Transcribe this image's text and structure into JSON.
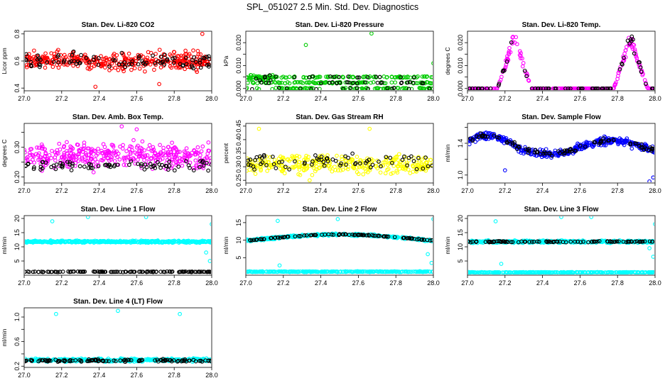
{
  "figure": {
    "title": "SPL_051027  2.5 Min. Std. Dev. Diagnostics"
  },
  "colors": {
    "black": "#000000",
    "red": "#ff0000",
    "green": "#00cc00",
    "magenta": "#ff00ff",
    "yellow": "#ffff00",
    "blue": "#0000ff",
    "cyan": "#00ffff"
  },
  "chart_data": [
    {
      "type": "scatter",
      "title": "Stan. Dev. Li-820 CO2",
      "ylabel": "Licor ppm",
      "xlim": [
        27.0,
        28.0
      ],
      "ylim": [
        0.38,
        0.82
      ],
      "xticks": [
        27.0,
        27.2,
        27.4,
        27.6,
        27.8,
        28.0
      ],
      "yticks": [
        0.4,
        0.6,
        0.8
      ],
      "ytick_labels": [
        "0.4",
        "0.6",
        "0.8"
      ],
      "series": [
        {
          "name": "main",
          "color": "red",
          "pattern": "band",
          "base": 0.6,
          "spread": 0.09,
          "n": 360,
          "outliers": [
            [
              27.38,
              0.41
            ],
            [
              27.72,
              0.43
            ],
            [
              27.95,
              0.8
            ]
          ]
        },
        {
          "name": "ref",
          "color": "black",
          "pattern": "band",
          "base": 0.6,
          "spread": 0.09,
          "n": 90,
          "outliers": []
        }
      ]
    },
    {
      "type": "scatter",
      "title": "Stan. Dev. Li-820 Pressure",
      "ylabel": "kPa",
      "xlim": [
        27.0,
        28.0
      ],
      "ylim": [
        -0.001,
        0.025
      ],
      "xticks": [
        27.0,
        27.2,
        27.4,
        27.6,
        27.8,
        28.0
      ],
      "yticks": [
        0.0,
        0.005,
        0.01,
        0.015,
        0.02
      ],
      "ytick_labels": [
        "0.000",
        "",
        "0.010",
        "",
        "0.020"
      ],
      "series": [
        {
          "name": "main",
          "color": "green",
          "pattern": "levels",
          "levels": [
            0.0,
            0.0025,
            0.005
          ],
          "n": 330,
          "outliers": [
            [
              27.32,
              0.019
            ],
            [
              27.67,
              0.024
            ],
            [
              28.0,
              0.011
            ]
          ]
        },
        {
          "name": "ref",
          "color": "black",
          "pattern": "levels",
          "levels": [
            0.0,
            0.0025,
            0.005
          ],
          "n": 60,
          "outliers": []
        }
      ]
    },
    {
      "type": "scatter",
      "title": "Stan. Dev. Li-820 Temp.",
      "ylabel": "degrees C",
      "xlim": [
        27.0,
        28.0
      ],
      "ylim": [
        -0.001,
        0.025
      ],
      "xticks": [
        27.0,
        27.2,
        27.4,
        27.6,
        27.8,
        28.0
      ],
      "yticks": [
        0.0,
        0.005,
        0.01,
        0.015,
        0.02
      ],
      "ytick_labels": [
        "0.000",
        "",
        "0.010",
        "",
        "0.020"
      ],
      "series": [
        {
          "name": "main",
          "color": "magenta",
          "pattern": "peaks",
          "peaks": [
            [
              27.25,
              0.024
            ],
            [
              27.87,
              0.024
            ]
          ],
          "width": 0.09,
          "n": 300,
          "outliers": []
        },
        {
          "name": "ref",
          "color": "black",
          "pattern": "peaks",
          "peaks": [
            [
              27.25,
              0.024
            ],
            [
              27.87,
              0.024
            ]
          ],
          "width": 0.09,
          "n": 70,
          "outliers": []
        }
      ]
    },
    {
      "type": "scatter",
      "title": "Stan. Dev. Amb. Box Temp.",
      "ylabel": "degrees C",
      "xlim": [
        27.0,
        28.0
      ],
      "ylim": [
        0.18,
        0.38
      ],
      "xticks": [
        27.0,
        27.2,
        27.4,
        27.6,
        27.8,
        28.0
      ],
      "yticks": [
        0.2,
        0.25,
        0.3,
        0.35
      ],
      "ytick_labels": [
        "0.20",
        "",
        "0.30",
        ""
      ],
      "series": [
        {
          "name": "main",
          "color": "magenta",
          "pattern": "band",
          "base": 0.27,
          "spread": 0.06,
          "n": 380,
          "outliers": [
            [
              27.52,
              0.37
            ],
            [
              27.6,
              0.36
            ]
          ]
        },
        {
          "name": "ref",
          "color": "black",
          "pattern": "band",
          "base": 0.24,
          "spread": 0.025,
          "n": 80,
          "outliers": []
        }
      ]
    },
    {
      "type": "scatter",
      "title": "Stan. Dev. Gas Stream RH",
      "ylabel": "percent",
      "xlim": [
        27.0,
        28.0
      ],
      "ylim": [
        0.24,
        0.46
      ],
      "xticks": [
        27.0,
        27.2,
        27.4,
        27.6,
        27.8,
        28.0
      ],
      "yticks": [
        0.25,
        0.3,
        0.35,
        0.4,
        0.45
      ],
      "ytick_labels": [
        "0.25",
        "0.30",
        "0.35",
        "0.40",
        "0.45"
      ],
      "series": [
        {
          "name": "main",
          "color": "yellow",
          "pattern": "band",
          "base": 0.31,
          "spread": 0.05,
          "n": 330,
          "outliers": [
            [
              27.07,
              0.44
            ],
            [
              27.66,
              0.44
            ],
            [
              27.34,
              0.25
            ]
          ]
        },
        {
          "name": "ref",
          "color": "black",
          "pattern": "band",
          "base": 0.32,
          "spread": 0.04,
          "n": 70,
          "outliers": []
        }
      ]
    },
    {
      "type": "scatter",
      "title": "Stan. Dev. Sample Flow",
      "ylabel": "ml/min",
      "xlim": [
        27.0,
        28.0
      ],
      "ylim": [
        0.9,
        1.65
      ],
      "xticks": [
        27.0,
        27.2,
        27.4,
        27.6,
        27.8,
        28.0
      ],
      "yticks": [
        1.0,
        1.2,
        1.4,
        1.6
      ],
      "ytick_labels": [
        "1.0",
        "",
        "1.4",
        ""
      ],
      "series": [
        {
          "name": "main",
          "color": "blue",
          "pattern": "wave",
          "base": 1.35,
          "amp": 0.12,
          "spread": 0.07,
          "n": 380,
          "outliers": [
            [
              27.2,
              1.06
            ],
            [
              27.97,
              0.92
            ],
            [
              27.99,
              0.97
            ]
          ]
        },
        {
          "name": "ref",
          "color": "black",
          "pattern": "wave",
          "base": 1.35,
          "amp": 0.12,
          "spread": 0.05,
          "n": 90,
          "outliers": []
        }
      ]
    },
    {
      "type": "scatter",
      "title": "Stan. Dev. Line 1 Flow",
      "ylabel": "ml/min",
      "xlim": [
        27.0,
        28.0
      ],
      "ylim": [
        0.0,
        21.0
      ],
      "xticks": [
        27.0,
        27.2,
        27.4,
        27.6,
        27.8,
        28.0
      ],
      "yticks": [
        5,
        10,
        15,
        20
      ],
      "ytick_labels": [
        "5",
        "10",
        "15",
        "20"
      ],
      "series": [
        {
          "name": "main",
          "color": "cyan",
          "pattern": "band",
          "base": 11.8,
          "spread": 0.5,
          "n": 420,
          "outliers": [
            [
              27.15,
              19.0
            ],
            [
              27.34,
              20.5
            ],
            [
              27.65,
              20.5
            ],
            [
              27.97,
              8.0
            ],
            [
              27.99,
              5.0
            ],
            [
              28.0,
              18.0
            ]
          ]
        },
        {
          "name": "ref",
          "color": "black",
          "pattern": "band",
          "base": 1.2,
          "spread": 0.15,
          "n": 120,
          "outliers": []
        }
      ]
    },
    {
      "type": "scatter",
      "title": "Stan. Dev. Line 2 Flow",
      "ylabel": "ml/min",
      "xlim": [
        27.0,
        28.0
      ],
      "ylim": [
        0.0,
        17.0
      ],
      "xticks": [
        27.0,
        27.2,
        27.4,
        27.6,
        27.8,
        28.0
      ],
      "yticks": [
        5,
        10,
        15
      ],
      "ytick_labels": [
        "5",
        "10",
        "15"
      ],
      "series": [
        {
          "name": "main",
          "color": "cyan",
          "pattern": "arch",
          "base": 9.8,
          "amp": 1.8,
          "spread": 0.5,
          "n": 360,
          "outliers": [
            [
              27.18,
              2.8
            ],
            [
              27.17,
              15.5
            ],
            [
              27.49,
              16.0
            ],
            [
              27.97,
              6.0
            ],
            [
              27.99,
              3.5
            ],
            [
              28.0,
              16.0
            ]
          ]
        },
        {
          "name": "low",
          "color": "cyan",
          "pattern": "band",
          "base": 1.0,
          "spread": 0.15,
          "n": 300,
          "outliers": []
        },
        {
          "name": "ref",
          "color": "black",
          "pattern": "arch",
          "base": 9.8,
          "amp": 1.8,
          "spread": 0.2,
          "n": 100,
          "outliers": []
        }
      ]
    },
    {
      "type": "scatter",
      "title": "Stan. Dev. Line 3 Flow",
      "ylabel": "ml/min",
      "xlim": [
        27.0,
        28.0
      ],
      "ylim": [
        0.0,
        21.0
      ],
      "xticks": [
        27.0,
        27.2,
        27.4,
        27.6,
        27.8,
        28.0
      ],
      "yticks": [
        5,
        10,
        15,
        20
      ],
      "ytick_labels": [
        "5",
        "10",
        "15",
        "20"
      ],
      "series": [
        {
          "name": "main",
          "color": "cyan",
          "pattern": "band",
          "base": 11.8,
          "spread": 0.6,
          "n": 380,
          "outliers": [
            [
              27.18,
              4.0
            ],
            [
              27.15,
              19.0
            ],
            [
              27.5,
              20.5
            ],
            [
              27.66,
              20.5
            ],
            [
              27.97,
              9.5
            ],
            [
              27.99,
              6.5
            ],
            [
              28.0,
              18.0
            ]
          ]
        },
        {
          "name": "low",
          "color": "cyan",
          "pattern": "band",
          "base": 1.0,
          "spread": 0.15,
          "n": 300,
          "outliers": []
        },
        {
          "name": "ref",
          "color": "black",
          "pattern": "band",
          "base": 11.8,
          "spread": 0.3,
          "n": 100,
          "outliers": []
        }
      ]
    },
    {
      "type": "scatter",
      "title": "Stan. Dev. Line 4 (LT) Flow",
      "ylabel": "ml/min",
      "xlim": [
        27.0,
        28.0
      ],
      "ylim": [
        0.18,
        1.15
      ],
      "xticks": [
        27.0,
        27.2,
        27.4,
        27.6,
        27.8,
        28.0
      ],
      "yticks": [
        0.2,
        0.4,
        0.6,
        0.8,
        1.0
      ],
      "ytick_labels": [
        "0.2",
        "",
        "0.6",
        "",
        "1.0"
      ],
      "series": [
        {
          "name": "main",
          "color": "cyan",
          "pattern": "band",
          "base": 0.3,
          "spread": 0.035,
          "n": 380,
          "outliers": [
            [
              27.17,
              1.05
            ],
            [
              27.5,
              1.1
            ],
            [
              27.83,
              1.05
            ]
          ]
        },
        {
          "name": "ref",
          "color": "black",
          "pattern": "band",
          "base": 0.29,
          "spread": 0.03,
          "n": 110,
          "outliers": []
        }
      ]
    }
  ]
}
